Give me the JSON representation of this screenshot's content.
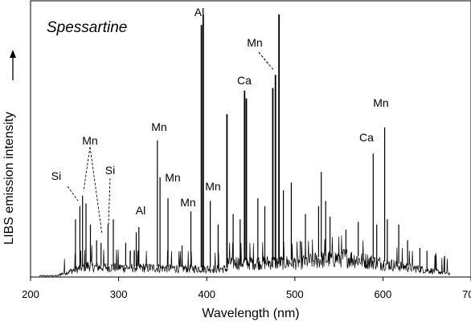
{
  "chart_data": {
    "type": "line",
    "title": "Spessartine",
    "xlabel": "Wavelength (nm)",
    "ylabel": "LIBS emission intensity",
    "xlim": [
      200,
      700
    ],
    "ylim": [
      0,
      100
    ],
    "xticks": [
      200,
      300,
      400,
      500,
      600,
      700
    ],
    "grid": false,
    "legend": "none",
    "color": "#000000",
    "peaks": [
      {
        "x": 251,
        "y": 22
      },
      {
        "x": 256,
        "y": 27
      },
      {
        "x": 259,
        "y": 31
      },
      {
        "x": 263,
        "y": 28
      },
      {
        "x": 268,
        "y": 20
      },
      {
        "x": 275,
        "y": 14
      },
      {
        "x": 280,
        "y": 13
      },
      {
        "x": 288,
        "y": 20
      },
      {
        "x": 294,
        "y": 22
      },
      {
        "x": 308,
        "y": 13
      },
      {
        "x": 320,
        "y": 17
      },
      {
        "x": 323,
        "y": 19
      },
      {
        "x": 344,
        "y": 52
      },
      {
        "x": 347,
        "y": 38
      },
      {
        "x": 356,
        "y": 30
      },
      {
        "x": 372,
        "y": 12
      },
      {
        "x": 382,
        "y": 25
      },
      {
        "x": 394,
        "y": 96
      },
      {
        "x": 396,
        "y": 100
      },
      {
        "x": 404,
        "y": 29
      },
      {
        "x": 413,
        "y": 20
      },
      {
        "x": 423,
        "y": 62
      },
      {
        "x": 430,
        "y": 24
      },
      {
        "x": 438,
        "y": 22
      },
      {
        "x": 443,
        "y": 71
      },
      {
        "x": 445,
        "y": 68
      },
      {
        "x": 458,
        "y": 30
      },
      {
        "x": 466,
        "y": 27
      },
      {
        "x": 475,
        "y": 72
      },
      {
        "x": 478,
        "y": 77
      },
      {
        "x": 482,
        "y": 100
      },
      {
        "x": 487,
        "y": 33
      },
      {
        "x": 496,
        "y": 36
      },
      {
        "x": 512,
        "y": 24
      },
      {
        "x": 527,
        "y": 27
      },
      {
        "x": 530,
        "y": 40
      },
      {
        "x": 535,
        "y": 29
      },
      {
        "x": 540,
        "y": 23
      },
      {
        "x": 558,
        "y": 18
      },
      {
        "x": 572,
        "y": 21
      },
      {
        "x": 589,
        "y": 47
      },
      {
        "x": 593,
        "y": 20
      },
      {
        "x": 602,
        "y": 57
      },
      {
        "x": 605,
        "y": 22
      },
      {
        "x": 618,
        "y": 20
      },
      {
        "x": 628,
        "y": 14
      },
      {
        "x": 642,
        "y": 11
      },
      {
        "x": 650,
        "y": 10
      },
      {
        "x": 660,
        "y": 9
      },
      {
        "x": 670,
        "y": 8
      }
    ],
    "annotations": [
      {
        "text": "Si",
        "x": 251
      },
      {
        "text": "Mn",
        "x": 259
      },
      {
        "text": "Si",
        "x": 288
      },
      {
        "text": "Al",
        "x": 323
      },
      {
        "text": "Mn",
        "x": 344
      },
      {
        "text": "Mn",
        "x": 356
      },
      {
        "text": "Mn",
        "x": 382
      },
      {
        "text": "Al",
        "x": 394
      },
      {
        "text": "Mn",
        "x": 404
      },
      {
        "text": "Ca",
        "x": 443
      },
      {
        "text": "Mn",
        "x": 478
      },
      {
        "text": "Ca",
        "x": 589
      },
      {
        "text": "Mn",
        "x": 602
      }
    ]
  }
}
